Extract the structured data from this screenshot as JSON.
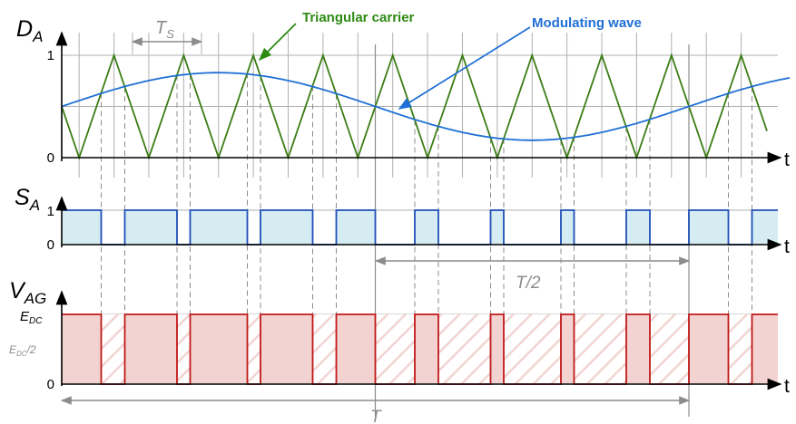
{
  "labels": {
    "da_main": "D",
    "da_sub": "A",
    "sa_main": "S",
    "sa_sub": "A",
    "vag_main": "V",
    "vag_sub": "AG",
    "ts_main": "T",
    "ts_sub": "S",
    "t_axis": "t",
    "half_period": "T/2",
    "period": "T",
    "carrier_callout": "Triangular carrier",
    "modulating_callout": "Modulating wave",
    "da_tick_1": "1",
    "da_tick_0": "0",
    "sa_tick_1": "1",
    "sa_tick_0": "0",
    "vag_tick_edc_main": "E",
    "vag_tick_edc_sub": "DC",
    "vag_tick_half_main": "E",
    "vag_tick_half_sub": "DC",
    "vag_tick_half_suffix": "/2",
    "vag_tick_0": "0"
  },
  "colors": {
    "carrier": "#3a7d14",
    "modulating": "#1f6fd6",
    "switch_line": "#1f4fb8",
    "switch_fill": "#d6ecf3",
    "voltage_line": "#c01818",
    "voltage_fill": "#f3d3d1",
    "callout_green": "#2d8a12",
    "callout_blue": "#1f6fd6"
  },
  "chart_data": {
    "type": "line",
    "carrier_periods_per_T": 9,
    "modulating": {
      "offset": 0.5,
      "amplitude": 0.33,
      "phase_deg": 0
    },
    "duty_ylim": [
      0,
      1
    ],
    "switch_levels": [
      0,
      1
    ],
    "voltage_levels": [
      "0",
      "E_DC/2",
      "E_DC"
    ]
  }
}
